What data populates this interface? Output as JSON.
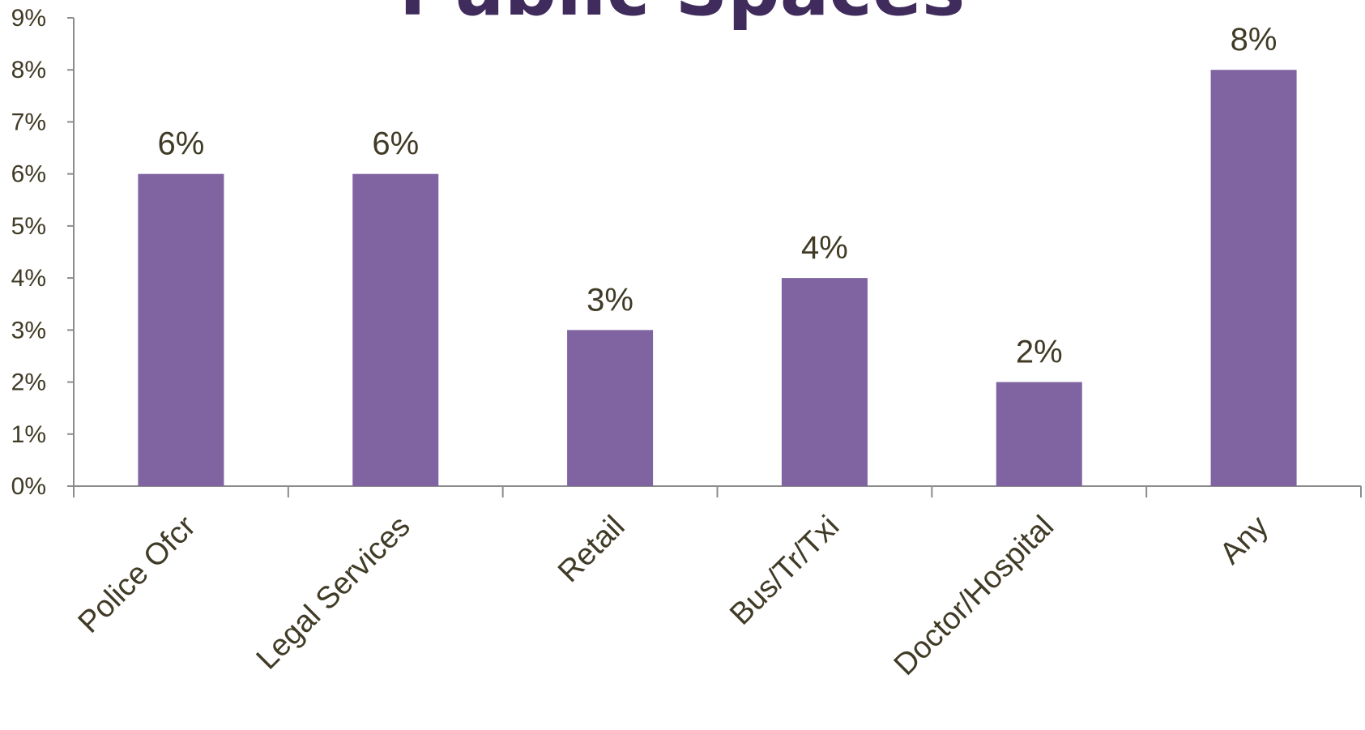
{
  "chart_data": {
    "type": "bar",
    "title": "Public Spaces",
    "xlabel": "",
    "ylabel": "",
    "categories": [
      "Police Ofcr",
      "Legal Services",
      "Retail",
      "Bus/Tr/Txi",
      "Doctor/Hospital",
      "Any"
    ],
    "values": [
      6,
      6,
      3,
      4,
      2,
      8
    ],
    "data_labels": [
      "6%",
      "6%",
      "3%",
      "4%",
      "2%",
      "8%"
    ],
    "ylim": [
      0,
      9
    ],
    "yticks": [
      0,
      1,
      2,
      3,
      4,
      5,
      6,
      7,
      8,
      9
    ],
    "ytick_labels": [
      "0%",
      "1%",
      "2%",
      "3%",
      "4%",
      "5%",
      "6%",
      "7%",
      "8%",
      "9%"
    ],
    "grid": false,
    "legend": "none"
  },
  "colors": {
    "bar": "#8064A2",
    "title": "#3F2B5C",
    "text": "#403B26",
    "axis": "#8C8C8C"
  }
}
